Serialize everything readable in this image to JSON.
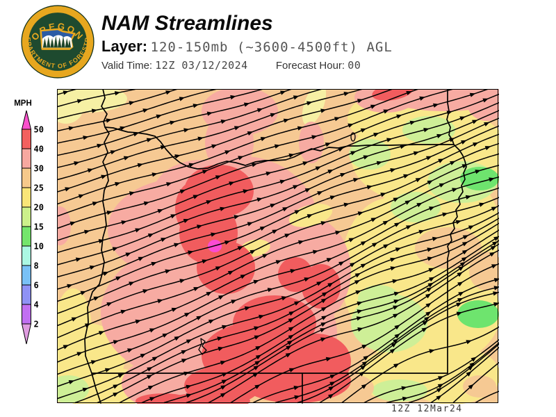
{
  "header": {
    "title": "NAM Streamlines",
    "layer_label": "Layer:",
    "layer_value": "120-150mb (~3600-4500ft) AGL",
    "valid_time_label": "Valid Time:",
    "valid_time_value": "12Z 03/12/2024",
    "forecast_hour_label": "Forecast Hour:",
    "forecast_hour_value": "00"
  },
  "logo": {
    "top_text": "OREGON",
    "bottom_text": "DEPARTMENT OF FORESTRY",
    "ring_color": "#E7A71F",
    "field_color": "#1E4A2F"
  },
  "legend": {
    "units": "MPH",
    "tick_labels": [
      "50",
      "40",
      "30",
      "25",
      "20",
      "15",
      "10",
      "8",
      "6",
      "4",
      "2"
    ],
    "segment_colors": [
      "#FB50CC",
      "#F2605F",
      "#F7A8A0",
      "#F6C98B",
      "#F9E578",
      "#CCF08B",
      "#74E56C",
      "#ABF8E3",
      "#79C1F6",
      "#8F92F5",
      "#C16FF1",
      "#DF9CE0"
    ]
  },
  "map": {
    "timestamp": "12Z 12Mar24",
    "palette": {
      "peach": "#F6C993",
      "salmon": "#F7ABA2",
      "red": "#F15C5E",
      "magenta": "#FB4BD3",
      "yellow": "#F9E78A",
      "pale_yellow": "#F6F0A4",
      "lgreen": "#CEEF97",
      "green": "#6EE46E"
    },
    "base_color_key": "peach",
    "regions": [
      {
        "color": "pale_yellow",
        "ellipses": [
          [
            125,
            142,
            58,
            20,
            0
          ],
          [
            95,
            152,
            26,
            26,
            0
          ],
          [
            452,
            150,
            14,
            32,
            20
          ]
        ]
      },
      {
        "color": "yellow",
        "ellipses": [
          [
            125,
            515,
            55,
            50,
            0
          ],
          [
            150,
            558,
            68,
            30,
            0
          ],
          [
            105,
            475,
            27,
            60,
            0
          ]
        ]
      },
      {
        "color": "yellow",
        "ellipses": [
          [
            590,
            170,
            90,
            45,
            0
          ],
          [
            620,
            225,
            115,
            72,
            0
          ],
          [
            630,
            330,
            90,
            90,
            0
          ],
          [
            560,
            390,
            70,
            105,
            0
          ],
          [
            615,
            450,
            105,
            80,
            0
          ],
          [
            650,
            540,
            70,
            42,
            0
          ],
          [
            575,
            540,
            60,
            38,
            0
          ]
        ]
      },
      {
        "color": "lgreen",
        "ellipses": [
          [
            617,
            187,
            38,
            20,
            0
          ],
          [
            665,
            262,
            50,
            30,
            0
          ],
          [
            598,
            298,
            36,
            22,
            0
          ],
          [
            532,
            222,
            30,
            22,
            0
          ],
          [
            560,
            465,
            55,
            42,
            0
          ],
          [
            545,
            430,
            30,
            20,
            0
          ],
          [
            98,
            560,
            30,
            20,
            0
          ],
          [
            575,
            562,
            40,
            16,
            0
          ]
        ]
      },
      {
        "color": "green",
        "ellipses": [
          [
            690,
            257,
            28,
            17,
            0
          ],
          [
            688,
            452,
            30,
            20,
            0
          ]
        ]
      },
      {
        "color": "salmon",
        "ellipses": [
          [
            345,
            160,
            55,
            35,
            0
          ],
          [
            330,
            205,
            35,
            45,
            0
          ],
          [
            448,
            205,
            18,
            30,
            0
          ],
          [
            86,
            325,
            16,
            28,
            0
          ],
          [
            290,
            280,
            70,
            50,
            0
          ],
          [
            270,
            330,
            115,
            75,
            0
          ],
          [
            350,
            330,
            110,
            105,
            0
          ],
          [
            280,
            450,
            135,
            100,
            0
          ],
          [
            380,
            480,
            105,
            90,
            0
          ],
          [
            240,
            552,
            65,
            38,
            0
          ],
          [
            440,
            390,
            65,
            80,
            0
          ],
          [
            640,
            138,
            85,
            22,
            0
          ],
          [
            700,
            148,
            28,
            26,
            0
          ],
          [
            555,
            140,
            45,
            22,
            0
          ]
        ]
      },
      {
        "color": "yellow",
        "ellipses": [
          [
            447,
            310,
            32,
            15,
            -15
          ],
          [
            367,
            357,
            22,
            12,
            -10
          ],
          [
            462,
            420,
            20,
            13,
            -15
          ]
        ]
      },
      {
        "color": "peach",
        "ellipses": [
          [
            645,
            357,
            48,
            30,
            0
          ],
          [
            700,
            390,
            25,
            28,
            0
          ],
          [
            505,
            558,
            33,
            20,
            0
          ],
          [
            690,
            556,
            24,
            16,
            0
          ]
        ]
      },
      {
        "color": "red",
        "ellipses": [
          [
            315,
            275,
            50,
            38,
            0
          ],
          [
            282,
            300,
            30,
            40,
            0
          ],
          [
            300,
            335,
            42,
            45,
            0
          ],
          [
            325,
            385,
            42,
            38,
            0
          ],
          [
            565,
            132,
            30,
            12,
            -10
          ],
          [
            425,
            395,
            25,
            25,
            0
          ],
          [
            462,
            412,
            28,
            32,
            0
          ],
          [
            395,
            465,
            60,
            40,
            0
          ],
          [
            365,
            512,
            75,
            48,
            0
          ],
          [
            425,
            548,
            80,
            32,
            0
          ],
          [
            320,
            555,
            55,
            28,
            0
          ],
          [
            235,
            577,
            40,
            11,
            0
          ],
          [
            455,
            520,
            50,
            40,
            0
          ],
          [
            300,
            577,
            60,
            12,
            0
          ]
        ]
      },
      {
        "color": "magenta",
        "ellipses": [
          [
            309,
            354,
            10,
            9,
            0
          ]
        ]
      }
    ],
    "outlines": {
      "coast": [
        [
          148,
          128
        ],
        [
          151,
          141
        ],
        [
          146,
          153
        ],
        [
          154,
          164
        ],
        [
          149,
          175
        ],
        [
          151,
          183
        ],
        [
          157,
          192
        ],
        [
          150,
          205
        ],
        [
          155,
          219
        ],
        [
          148,
          233
        ],
        [
          154,
          247
        ],
        [
          156,
          260
        ],
        [
          150,
          274
        ],
        [
          148,
          290
        ],
        [
          151,
          306
        ],
        [
          153,
          324
        ],
        [
          148,
          342
        ],
        [
          146,
          360
        ],
        [
          150,
          377
        ],
        [
          147,
          394
        ],
        [
          143,
          409
        ],
        [
          133,
          420
        ],
        [
          126,
          442
        ],
        [
          127,
          464
        ],
        [
          122,
          488
        ],
        [
          123,
          512
        ],
        [
          128,
          526
        ],
        [
          132,
          537
        ],
        [
          138,
          559
        ],
        [
          145,
          580
        ]
      ],
      "north_border": [
        [
          151,
          183
        ],
        [
          163,
          184
        ],
        [
          173,
          187
        ],
        [
          184,
          190
        ],
        [
          197,
          191
        ],
        [
          211,
          193
        ],
        [
          223,
          196
        ],
        [
          231,
          204
        ],
        [
          239,
          215
        ],
        [
          249,
          226
        ],
        [
          259,
          234
        ],
        [
          271,
          240
        ],
        [
          284,
          243
        ],
        [
          299,
          242
        ],
        [
          313,
          236
        ],
        [
          326,
          232
        ],
        [
          339,
          234
        ],
        [
          353,
          238
        ],
        [
          367,
          233
        ],
        [
          381,
          231
        ],
        [
          396,
          231
        ],
        [
          411,
          230
        ],
        [
          423,
          226
        ],
        [
          435,
          220
        ],
        [
          448,
          214
        ],
        [
          461,
          217
        ],
        [
          473,
          212
        ],
        [
          487,
          213
        ],
        [
          501,
          210
        ],
        [
          514,
          210
        ],
        [
          528,
          209
        ],
        [
          560,
          209
        ],
        [
          600,
          208
        ],
        [
          627,
          208
        ],
        [
          653,
          208
        ]
      ],
      "wa_id_border": [
        [
          644,
          128
        ],
        [
          644,
          148
        ],
        [
          646,
          160
        ],
        [
          643,
          172
        ],
        [
          648,
          183
        ],
        [
          646,
          194
        ],
        [
          651,
          202
        ],
        [
          653,
          208
        ]
      ],
      "snake_border": [
        [
          653,
          208
        ],
        [
          661,
          216
        ],
        [
          666,
          224
        ],
        [
          669,
          232
        ],
        [
          671,
          240
        ],
        [
          667,
          249
        ],
        [
          669,
          258
        ],
        [
          664,
          267
        ],
        [
          666,
          276
        ],
        [
          660,
          285
        ],
        [
          662,
          294
        ],
        [
          656,
          302
        ],
        [
          658,
          312
        ],
        [
          652,
          320
        ],
        [
          654,
          329
        ],
        [
          648,
          337
        ],
        [
          650,
          346
        ],
        [
          644,
          354
        ],
        [
          646,
          363
        ],
        [
          644,
          372
        ],
        [
          644,
          537
        ]
      ],
      "south_border": [
        [
          132,
          537
        ],
        [
          644,
          537
        ]
      ],
      "ca_nv_border": [
        [
          435,
          537
        ],
        [
          435,
          580
        ]
      ],
      "klamath_lake": [
        [
          289,
          487
        ],
        [
          295,
          491
        ],
        [
          291,
          498
        ],
        [
          297,
          504
        ],
        [
          291,
          510
        ],
        [
          286,
          503
        ],
        [
          290,
          495
        ],
        [
          289,
          487
        ]
      ],
      "small_lake": [
        508,
        197,
        3,
        6
      ]
    },
    "flow": {
      "base_angle": [
        13,
        9,
        6
      ],
      "wiggle": [
        3,
        14
      ],
      "k": 0.039,
      "y_shift": 0.9,
      "left_seed_start": 136,
      "left_seed_step": 17.5,
      "bottom_seed_start": 108,
      "bottom_seed_step": 32,
      "arrow_spacing": 55,
      "step": 6,
      "line_color": "#000000",
      "line_width": 1.5
    }
  }
}
